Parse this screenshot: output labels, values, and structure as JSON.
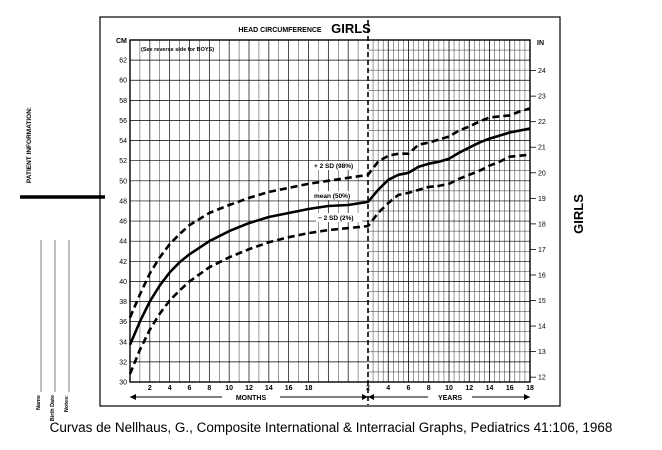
{
  "chart_data": {
    "type": "line",
    "title_small": "HEAD CIRCUMFERENCE",
    "title_large": "GIRLS",
    "note": "(See reverse side for BOYS)",
    "side_label": "GIRLS",
    "left_unit": "CM",
    "right_unit": "IN",
    "ylim_cm": [
      30,
      64
    ],
    "cm_ticks": [
      "30",
      "32",
      "34",
      "36",
      "38",
      "40",
      "42",
      "44",
      "46",
      "48",
      "50",
      "52",
      "54",
      "56",
      "58",
      "60",
      "62"
    ],
    "in_ticks": [
      "12",
      "13",
      "14",
      "15",
      "16",
      "17",
      "18",
      "19",
      "20",
      "21",
      "22",
      "23",
      "24"
    ],
    "month_ticks": [
      "2",
      "4",
      "6",
      "8",
      "10",
      "12",
      "14",
      "16",
      "18"
    ],
    "year_ticks": [
      "2",
      "4",
      "6",
      "8",
      "10",
      "12",
      "14",
      "16",
      "18"
    ],
    "xlabel_months": "MONTHS",
    "xlabel_years": "YEARS",
    "patient_info_label": "PATIENT INFORMATION:",
    "patient_fields": [
      "Name",
      "Birth Date",
      "Notes:"
    ],
    "caption": "Curvas de Nellhaus, G., Composite International & Interracial Graphs, Pediatrics 41:106, 1968",
    "series": [
      {
        "name": "+ 2 SD (98%)",
        "style": "dashed",
        "months": {
          "x": [
            0,
            1,
            2,
            3,
            4,
            5,
            6,
            8,
            10,
            12,
            14,
            16,
            18,
            20,
            22,
            24
          ],
          "y": [
            36.4,
            38.7,
            40.8,
            42.4,
            43.7,
            44.7,
            45.6,
            46.8,
            47.6,
            48.3,
            48.9,
            49.3,
            49.7,
            50.0,
            50.3,
            50.6
          ]
        },
        "years": {
          "x": [
            2,
            3,
            4,
            5,
            6,
            7,
            8,
            9,
            10,
            11,
            12,
            13,
            14,
            15,
            16,
            17,
            18
          ],
          "y": [
            50.6,
            51.9,
            52.5,
            52.7,
            52.7,
            53.6,
            53.8,
            54.1,
            54.4,
            55.0,
            55.4,
            55.9,
            56.3,
            56.4,
            56.5,
            56.9,
            57.2
          ]
        }
      },
      {
        "name": "mean (50%)",
        "style": "solid",
        "months": {
          "x": [
            0,
            1,
            2,
            3,
            4,
            5,
            6,
            8,
            10,
            12,
            14,
            16,
            18,
            20,
            22,
            24
          ],
          "y": [
            33.7,
            36.0,
            38.0,
            39.6,
            40.9,
            41.9,
            42.7,
            44.0,
            45.0,
            45.8,
            46.4,
            46.8,
            47.2,
            47.5,
            47.6,
            47.9
          ]
        },
        "years": {
          "x": [
            2,
            3,
            4,
            5,
            6,
            7,
            8,
            9,
            10,
            11,
            12,
            13,
            14,
            15,
            16,
            17,
            18
          ],
          "y": [
            47.9,
            49.1,
            50.1,
            50.6,
            50.8,
            51.4,
            51.7,
            51.9,
            52.2,
            52.8,
            53.3,
            53.8,
            54.2,
            54.5,
            54.8,
            55.0,
            55.2
          ]
        }
      },
      {
        "name": "− 2 SD (2%)",
        "style": "dashed",
        "months": {
          "x": [
            0,
            1,
            2,
            3,
            4,
            5,
            6,
            8,
            10,
            12,
            14,
            16,
            18,
            20,
            22,
            24
          ],
          "y": [
            30.8,
            33.2,
            35.2,
            36.8,
            38.1,
            39.1,
            40.0,
            41.4,
            42.4,
            43.2,
            43.9,
            44.4,
            44.8,
            45.1,
            45.3,
            45.5
          ]
        },
        "years": {
          "x": [
            2,
            3,
            4,
            5,
            6,
            7,
            8,
            9,
            10,
            11,
            12,
            13,
            14,
            15,
            16,
            17,
            18
          ],
          "y": [
            45.5,
            46.8,
            47.8,
            48.6,
            48.8,
            49.1,
            49.4,
            49.5,
            49.7,
            50.2,
            50.6,
            51.0,
            51.5,
            51.9,
            52.4,
            52.5,
            52.6
          ]
        }
      }
    ]
  }
}
